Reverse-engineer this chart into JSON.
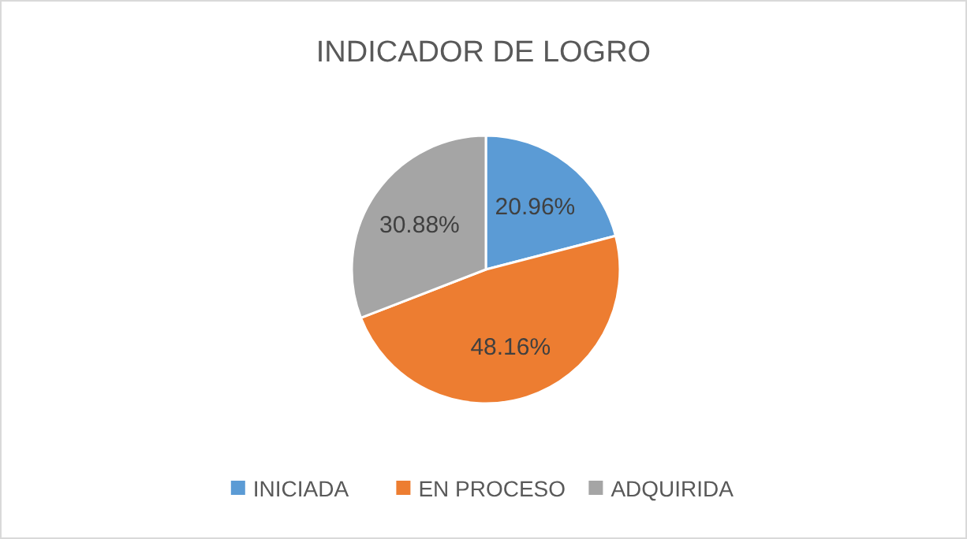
{
  "chart_data": {
    "type": "pie",
    "title": "INDICADOR DE LOGRO",
    "categories": [
      "INICIADA",
      "EN PROCESO",
      "ADQUIRIDA"
    ],
    "values": [
      20.96,
      48.16,
      30.88
    ],
    "colors": [
      "#5b9bd5",
      "#ed7d31",
      "#a5a5a5"
    ],
    "value_labels": [
      "20.96%",
      "48.16%",
      "30.88%"
    ],
    "legend": "bottom"
  }
}
